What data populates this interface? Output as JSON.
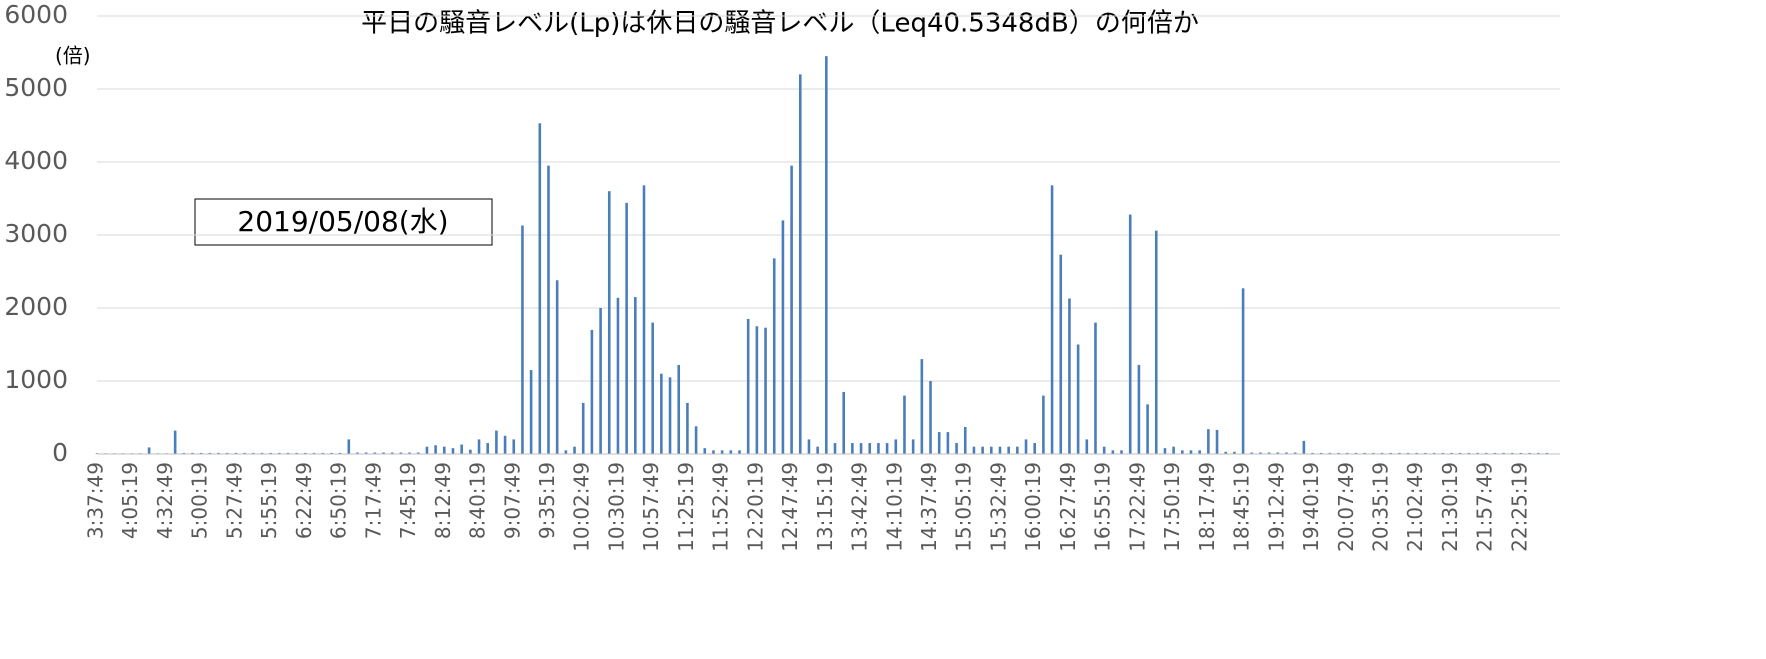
{
  "chart_data": {
    "type": "bar",
    "title": "平日の騒音レベル(Lp)は休日の騒音レベル（Leq40.5348dB）の何倍か",
    "y_label": "(倍)",
    "annotation": "2019/05/08(水)",
    "color": "#4a7ebb",
    "ylim": [
      0,
      6000
    ],
    "yticks": [
      0,
      1000,
      2000,
      3000,
      4000,
      5000,
      6000
    ],
    "grid": true,
    "categories": [
      "3:37:49",
      null,
      null,
      null,
      "4:05:19",
      null,
      null,
      null,
      "4:32:49",
      null,
      null,
      null,
      "5:00:19",
      null,
      null,
      null,
      "5:27:49",
      null,
      null,
      null,
      "5:55:19",
      null,
      null,
      null,
      "6:22:49",
      null,
      null,
      null,
      "6:50:19",
      null,
      null,
      null,
      "7:17:49",
      null,
      null,
      null,
      "7:45:19",
      null,
      null,
      null,
      "8:12:49",
      null,
      null,
      null,
      "8:40:19",
      null,
      null,
      null,
      "9:07:49",
      null,
      null,
      null,
      "9:35:19",
      null,
      null,
      null,
      "10:02:49",
      null,
      null,
      null,
      "10:30:19",
      null,
      null,
      null,
      "10:57:49",
      null,
      null,
      null,
      "11:25:19",
      null,
      null,
      null,
      "11:52:49",
      null,
      null,
      null,
      "12:20:19",
      null,
      null,
      null,
      "12:47:49",
      null,
      null,
      null,
      "13:15:19",
      null,
      null,
      null,
      "13:42:49",
      null,
      null,
      null,
      "14:10:19",
      null,
      null,
      null,
      "14:37:49",
      null,
      null,
      null,
      "15:05:19",
      null,
      null,
      null,
      "15:32:49",
      null,
      null,
      null,
      "16:00:19",
      null,
      null,
      null,
      "16:27:49",
      null,
      null,
      null,
      "16:55:19",
      null,
      null,
      null,
      "17:22:49",
      null,
      null,
      null,
      "17:50:19",
      null,
      null,
      null,
      "18:17:49",
      null,
      null,
      null,
      "18:45:19",
      null,
      null,
      null,
      "19:12:49",
      null,
      null,
      null,
      "19:40:19",
      null,
      null,
      null,
      "20:07:49",
      null,
      null,
      null,
      "20:35:19",
      null,
      null,
      null,
      "21:02:49",
      null,
      null,
      null,
      "21:30:19",
      null,
      null,
      null,
      "21:57:49",
      null,
      null,
      null,
      "22:25:19",
      null,
      null,
      null
    ],
    "values": [
      10,
      10,
      10,
      10,
      10,
      10,
      90,
      10,
      10,
      320,
      15,
      15,
      15,
      15,
      15,
      15,
      15,
      15,
      15,
      15,
      15,
      15,
      15,
      15,
      15,
      15,
      15,
      15,
      15,
      200,
      20,
      20,
      20,
      20,
      20,
      20,
      20,
      20,
      100,
      120,
      100,
      80,
      130,
      60,
      200,
      150,
      320,
      250,
      200,
      3130,
      1150,
      4530,
      3950,
      2380,
      50,
      100,
      700,
      1700,
      2000,
      3600,
      2140,
      3440,
      2150,
      3680,
      1800,
      1100,
      1050,
      1220,
      700,
      380,
      80,
      50,
      50,
      50,
      50,
      1850,
      1750,
      1730,
      2680,
      3200,
      3950,
      5200,
      200,
      100,
      5450,
      150,
      850,
      150,
      150,
      150,
      150,
      150,
      200,
      800,
      200,
      1300,
      1000,
      300,
      300,
      150,
      370,
      100,
      100,
      100,
      100,
      100,
      100,
      200,
      150,
      800,
      3680,
      2730,
      2130,
      1500,
      200,
      1800,
      100,
      50,
      50,
      3280,
      1220,
      680,
      3060,
      80,
      100,
      50,
      50,
      50,
      340,
      330,
      30,
      30,
      2270,
      20,
      20,
      20,
      20,
      20,
      20,
      180,
      15,
      15,
      15,
      15,
      15,
      15,
      15,
      15,
      15,
      15,
      15,
      15,
      15,
      15,
      15,
      15,
      15,
      15,
      15,
      15,
      15,
      15,
      15,
      15,
      15,
      15,
      15,
      15
    ]
  }
}
